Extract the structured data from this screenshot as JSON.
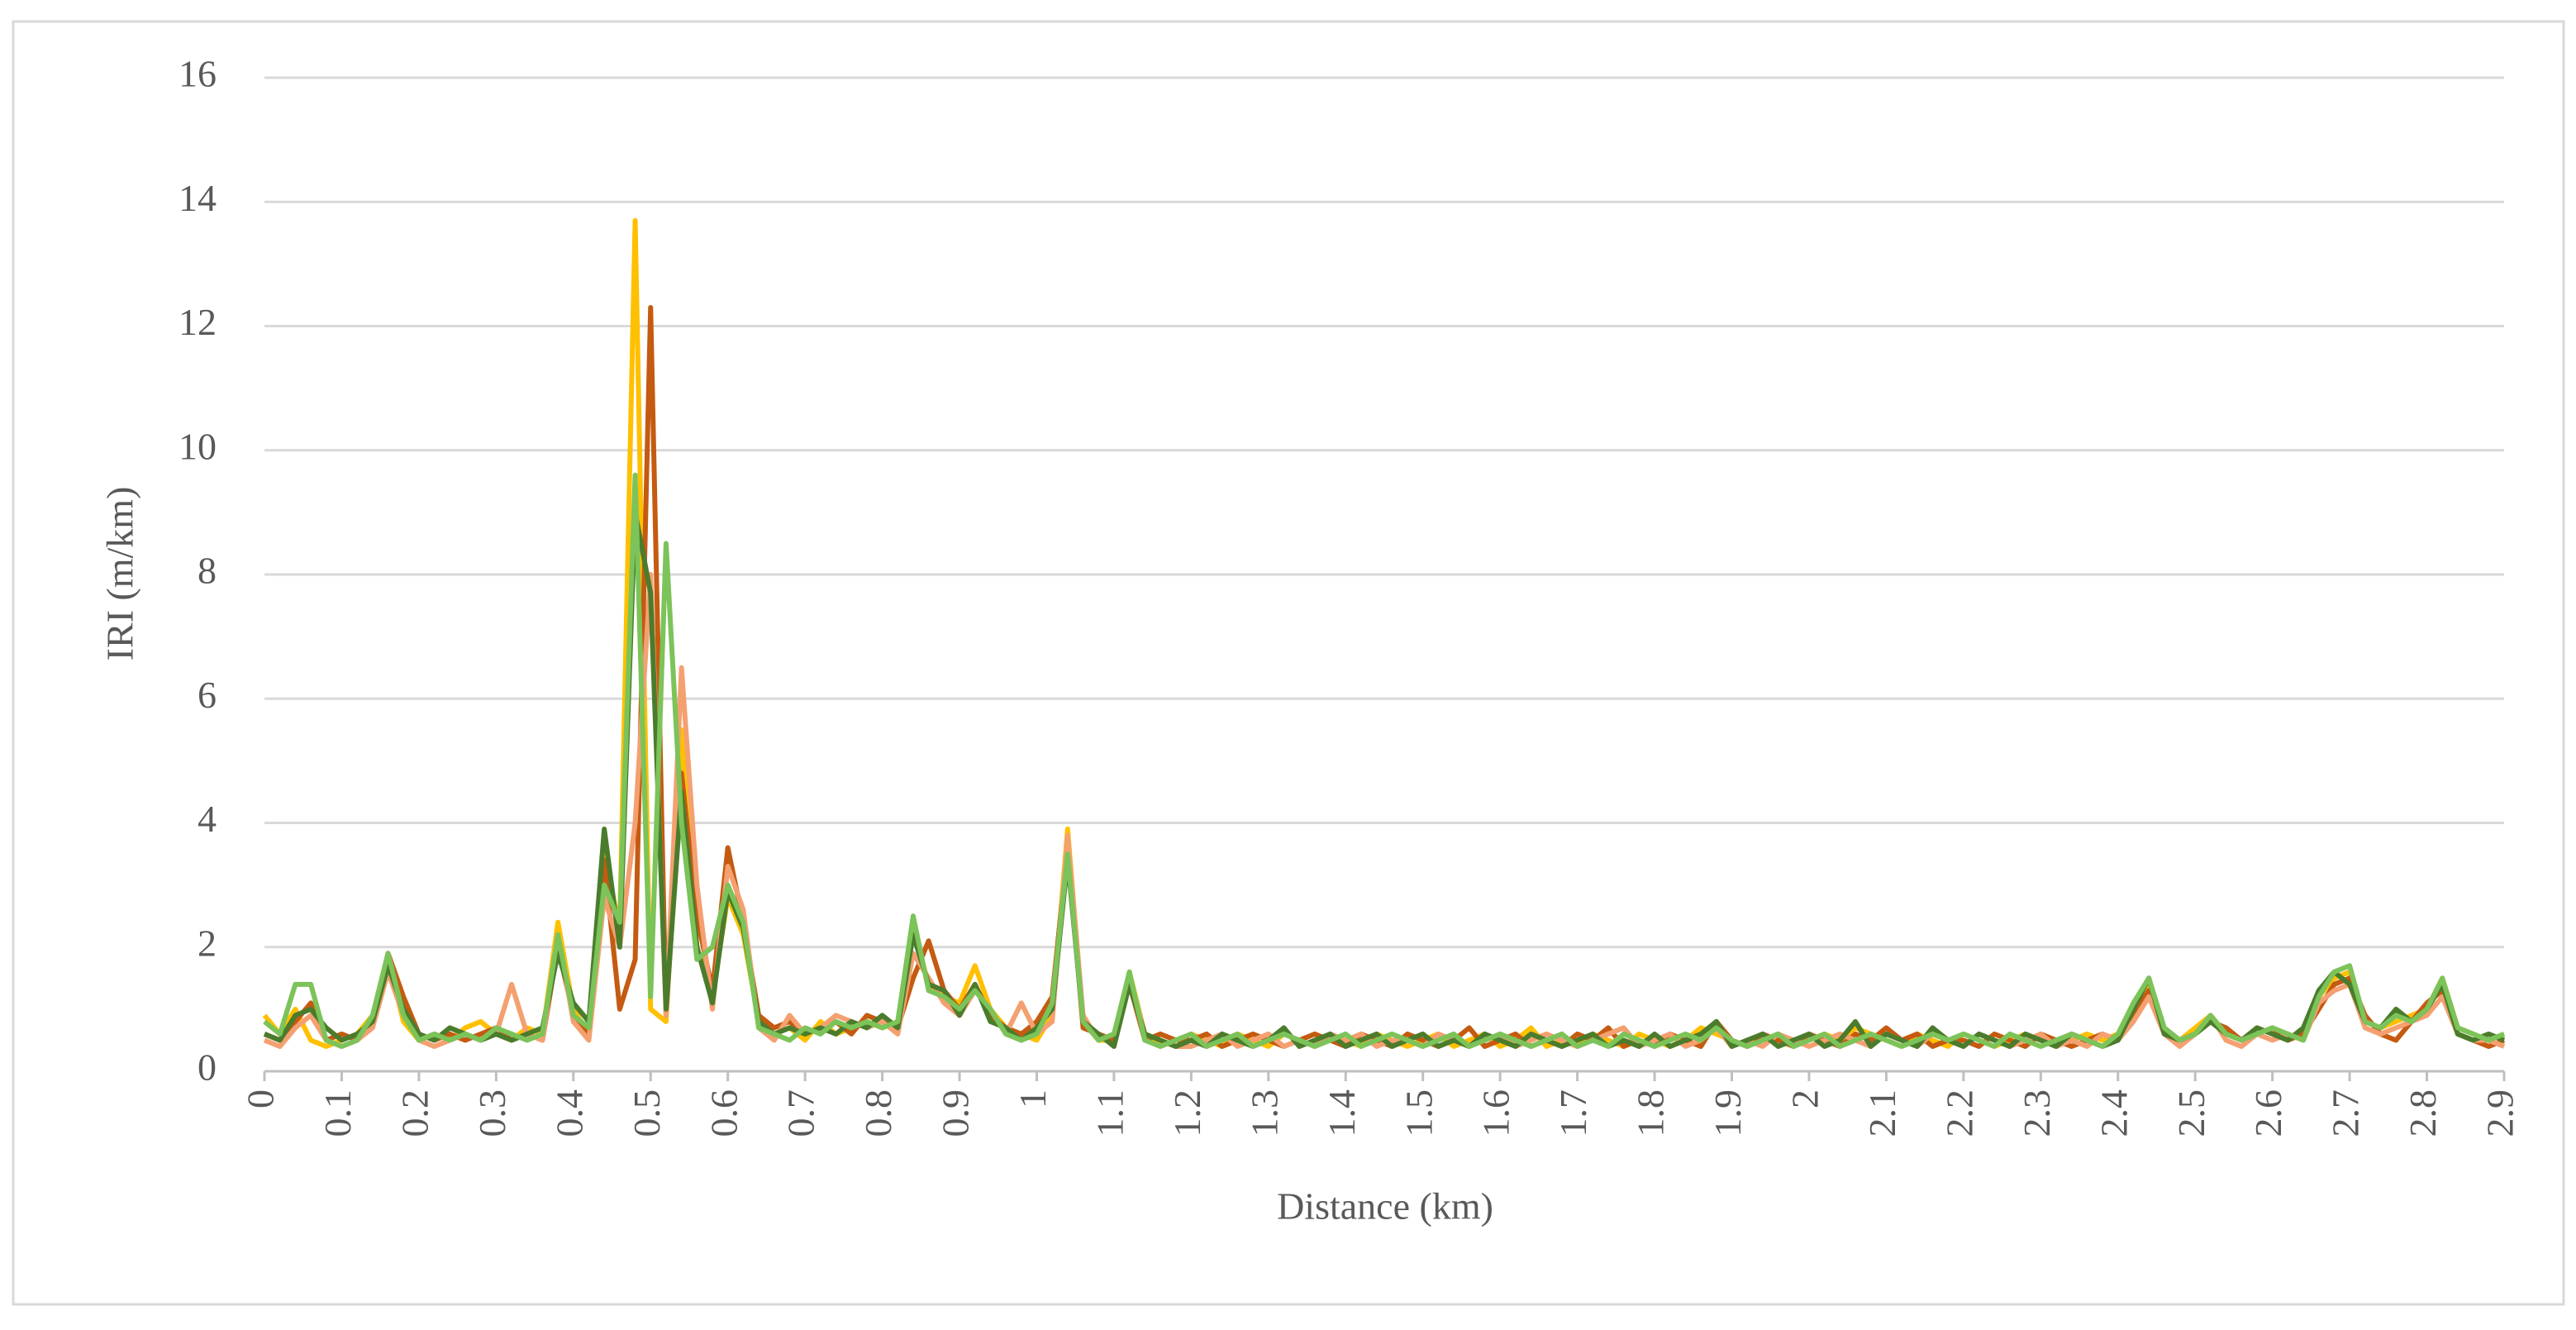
{
  "chart_data": {
    "type": "line",
    "x_label": "Distance (km)",
    "y_label": "IRI (m/km)",
    "xlim": [
      0,
      2.9
    ],
    "ylim": [
      0,
      16
    ],
    "xticks": [
      0,
      0.1,
      0.2,
      0.3,
      0.4,
      0.5,
      0.6,
      0.7,
      0.8,
      0.9,
      1,
      1.1,
      1.2,
      1.3,
      1.4,
      1.5,
      1.6,
      1.7,
      1.8,
      1.9,
      2,
      2.1,
      2.2,
      2.3,
      2.4,
      2.5,
      2.6,
      2.7,
      2.8,
      2.9
    ],
    "yticks": [
      0,
      2,
      4,
      6,
      8,
      10,
      12,
      14,
      16
    ],
    "grid": true,
    "x": [
      0,
      0.02,
      0.04,
      0.06,
      0.08,
      0.1,
      0.12,
      0.14,
      0.16,
      0.18,
      0.2,
      0.22,
      0.24,
      0.26,
      0.28,
      0.3,
      0.32,
      0.34,
      0.36,
      0.38,
      0.4,
      0.42,
      0.44,
      0.46,
      0.48,
      0.5,
      0.52,
      0.54,
      0.56,
      0.58,
      0.6,
      0.62,
      0.64,
      0.66,
      0.68,
      0.7,
      0.72,
      0.74,
      0.76,
      0.78,
      0.8,
      0.82,
      0.84,
      0.86,
      0.88,
      0.9,
      0.92,
      0.94,
      0.96,
      0.98,
      1,
      1.02,
      1.04,
      1.06,
      1.08,
      1.1,
      1.12,
      1.14,
      1.16,
      1.18,
      1.2,
      1.22,
      1.24,
      1.26,
      1.28,
      1.3,
      1.32,
      1.34,
      1.36,
      1.38,
      1.4,
      1.42,
      1.44,
      1.46,
      1.48,
      1.5,
      1.52,
      1.54,
      1.56,
      1.58,
      1.6,
      1.62,
      1.64,
      1.66,
      1.68,
      1.7,
      1.72,
      1.74,
      1.76,
      1.78,
      1.8,
      1.82,
      1.84,
      1.86,
      1.88,
      1.9,
      1.92,
      1.94,
      1.96,
      1.98,
      2,
      2.02,
      2.04,
      2.06,
      2.08,
      2.1,
      2.12,
      2.14,
      2.16,
      2.18,
      2.2,
      2.22,
      2.24,
      2.26,
      2.28,
      2.3,
      2.32,
      2.34,
      2.36,
      2.38,
      2.4,
      2.42,
      2.44,
      2.46,
      2.48,
      2.5,
      2.52,
      2.54,
      2.56,
      2.58,
      2.6,
      2.62,
      2.64,
      2.66,
      2.68,
      2.7,
      2.72,
      2.74,
      2.76,
      2.78,
      2.8,
      2.82,
      2.84,
      2.86,
      2.88,
      2.9
    ],
    "series": [
      {
        "color": "#ffc000",
        "values": [
          0.9,
          0.6,
          1.0,
          0.5,
          0.4,
          0.5,
          0.6,
          0.9,
          1.8,
          0.8,
          0.5,
          0.6,
          0.5,
          0.7,
          0.8,
          0.6,
          0.5,
          0.7,
          0.6,
          2.4,
          1.0,
          0.6,
          3.5,
          2.3,
          13.7,
          1.0,
          0.8,
          5.5,
          2.0,
          1.2,
          2.8,
          2.2,
          0.8,
          0.6,
          0.7,
          0.5,
          0.8,
          0.6,
          0.7,
          0.8,
          0.7,
          0.8,
          2.3,
          1.4,
          1.2,
          1.1,
          1.7,
          1.0,
          0.7,
          0.6,
          0.5,
          0.9,
          3.9,
          0.8,
          0.5,
          0.5,
          1.6,
          0.6,
          0.4,
          0.5,
          0.6,
          0.5,
          0.4,
          0.6,
          0.5,
          0.4,
          0.6,
          0.5,
          0.4,
          0.6,
          0.5,
          0.4,
          0.6,
          0.5,
          0.4,
          0.5,
          0.6,
          0.4,
          0.5,
          0.6,
          0.4,
          0.5,
          0.7,
          0.4,
          0.5,
          0.4,
          0.6,
          0.5,
          0.4,
          0.6,
          0.5,
          0.4,
          0.5,
          0.7,
          0.6,
          0.5,
          0.4,
          0.5,
          0.6,
          0.4,
          0.5,
          0.6,
          0.5,
          0.7,
          0.6,
          0.5,
          0.4,
          0.6,
          0.5,
          0.4,
          0.6,
          0.5,
          0.4,
          0.5,
          0.6,
          0.5,
          0.4,
          0.5,
          0.6,
          0.5,
          0.6,
          1.0,
          1.4,
          0.6,
          0.5,
          0.7,
          0.9,
          0.6,
          0.5,
          0.7,
          0.6,
          0.5,
          0.7,
          1.2,
          1.5,
          1.6,
          0.8,
          0.7,
          0.8,
          0.9,
          1.0,
          1.5,
          0.7,
          0.6,
          0.5,
          0.6
        ]
      },
      {
        "color": "#c55a11",
        "values": [
          0.6,
          0.5,
          0.8,
          1.1,
          0.5,
          0.6,
          0.5,
          0.8,
          1.9,
          1.2,
          0.6,
          0.5,
          0.6,
          0.5,
          0.6,
          0.7,
          0.5,
          0.6,
          0.5,
          2.0,
          0.9,
          0.6,
          3.4,
          1.0,
          1.8,
          12.3,
          0.9,
          4.8,
          2.5,
          1.3,
          3.6,
          2.4,
          0.9,
          0.7,
          0.8,
          0.6,
          0.7,
          0.8,
          0.6,
          0.9,
          0.8,
          0.7,
          1.5,
          2.1,
          1.3,
          1.0,
          1.4,
          0.9,
          0.7,
          0.6,
          0.8,
          1.2,
          3.6,
          0.7,
          0.6,
          0.5,
          1.4,
          0.5,
          0.6,
          0.5,
          0.5,
          0.6,
          0.4,
          0.5,
          0.6,
          0.5,
          0.4,
          0.5,
          0.6,
          0.5,
          0.4,
          0.6,
          0.5,
          0.4,
          0.6,
          0.5,
          0.4,
          0.5,
          0.7,
          0.4,
          0.5,
          0.6,
          0.4,
          0.5,
          0.4,
          0.6,
          0.5,
          0.7,
          0.4,
          0.5,
          0.4,
          0.6,
          0.5,
          0.4,
          0.8,
          0.5,
          0.4,
          0.6,
          0.5,
          0.4,
          0.6,
          0.5,
          0.4,
          0.6,
          0.5,
          0.7,
          0.5,
          0.6,
          0.4,
          0.5,
          0.5,
          0.4,
          0.6,
          0.5,
          0.4,
          0.6,
          0.5,
          0.4,
          0.5,
          0.6,
          0.5,
          0.9,
          1.3,
          0.7,
          0.5,
          0.6,
          0.8,
          0.7,
          0.5,
          0.6,
          0.7,
          0.5,
          0.6,
          1.0,
          1.4,
          1.5,
          0.9,
          0.6,
          0.5,
          0.8,
          1.1,
          1.3,
          0.6,
          0.5,
          0.4,
          0.5
        ]
      },
      {
        "color": "#f4a070",
        "values": [
          0.5,
          0.4,
          0.7,
          0.9,
          0.5,
          0.4,
          0.5,
          0.7,
          1.6,
          0.9,
          0.5,
          0.4,
          0.5,
          0.6,
          0.5,
          0.6,
          1.4,
          0.6,
          0.5,
          2.2,
          0.8,
          0.5,
          2.8,
          2.0,
          4.0,
          8.0,
          0.9,
          6.5,
          3.0,
          1.0,
          3.3,
          2.6,
          0.7,
          0.5,
          0.9,
          0.6,
          0.7,
          0.9,
          0.8,
          0.7,
          0.8,
          0.6,
          1.9,
          1.5,
          1.1,
          0.9,
          1.3,
          1.0,
          0.6,
          1.1,
          0.6,
          0.8,
          3.8,
          0.9,
          0.5,
          0.6,
          1.5,
          0.6,
          0.5,
          0.4,
          0.4,
          0.5,
          0.6,
          0.4,
          0.5,
          0.6,
          0.4,
          0.5,
          0.4,
          0.6,
          0.5,
          0.6,
          0.4,
          0.5,
          0.5,
          0.4,
          0.6,
          0.5,
          0.4,
          0.5,
          0.6,
          0.4,
          0.5,
          0.6,
          0.5,
          0.4,
          0.5,
          0.6,
          0.7,
          0.4,
          0.5,
          0.6,
          0.4,
          0.5,
          0.7,
          0.4,
          0.5,
          0.4,
          0.6,
          0.5,
          0.4,
          0.5,
          0.6,
          0.5,
          0.4,
          0.6,
          0.5,
          0.4,
          0.6,
          0.5,
          0.4,
          0.6,
          0.5,
          0.4,
          0.5,
          0.6,
          0.4,
          0.5,
          0.4,
          0.6,
          0.5,
          0.8,
          1.2,
          0.6,
          0.4,
          0.6,
          0.9,
          0.5,
          0.4,
          0.6,
          0.5,
          0.6,
          0.5,
          1.1,
          1.3,
          1.4,
          0.7,
          0.6,
          0.7,
          0.8,
          0.9,
          1.2,
          0.6,
          0.5,
          0.5,
          0.4
        ]
      },
      {
        "color": "#4a7c2c",
        "values": [
          0.6,
          0.5,
          0.9,
          1.0,
          0.7,
          0.5,
          0.6,
          0.8,
          1.7,
          1.0,
          0.6,
          0.5,
          0.7,
          0.6,
          0.5,
          0.6,
          0.5,
          0.6,
          0.7,
          1.9,
          1.1,
          0.8,
          3.9,
          2.0,
          9.0,
          7.7,
          1.0,
          4.5,
          2.0,
          1.1,
          2.9,
          2.3,
          0.8,
          0.6,
          0.7,
          0.6,
          0.7,
          0.6,
          0.8,
          0.7,
          0.9,
          0.7,
          2.2,
          1.4,
          1.3,
          0.9,
          1.4,
          0.8,
          0.7,
          0.5,
          0.7,
          1.0,
          3.4,
          0.8,
          0.6,
          0.4,
          1.4,
          0.6,
          0.5,
          0.4,
          0.5,
          0.4,
          0.6,
          0.5,
          0.4,
          0.5,
          0.7,
          0.4,
          0.5,
          0.6,
          0.4,
          0.5,
          0.6,
          0.4,
          0.5,
          0.6,
          0.4,
          0.5,
          0.4,
          0.6,
          0.5,
          0.4,
          0.6,
          0.5,
          0.4,
          0.5,
          0.6,
          0.4,
          0.5,
          0.4,
          0.6,
          0.4,
          0.5,
          0.6,
          0.8,
          0.4,
          0.5,
          0.6,
          0.4,
          0.5,
          0.6,
          0.4,
          0.5,
          0.8,
          0.4,
          0.6,
          0.5,
          0.4,
          0.7,
          0.5,
          0.4,
          0.6,
          0.5,
          0.4,
          0.6,
          0.5,
          0.4,
          0.6,
          0.5,
          0.4,
          0.5,
          1.0,
          1.5,
          0.6,
          0.5,
          0.6,
          0.8,
          0.6,
          0.5,
          0.7,
          0.6,
          0.5,
          0.7,
          1.3,
          1.6,
          1.4,
          0.8,
          0.7,
          1.0,
          0.8,
          1.0,
          1.4,
          0.6,
          0.5,
          0.6,
          0.5
        ]
      },
      {
        "color": "#7cc35a",
        "values": [
          0.8,
          0.6,
          1.4,
          1.4,
          0.5,
          0.4,
          0.5,
          0.9,
          1.9,
          0.9,
          0.5,
          0.6,
          0.5,
          0.6,
          0.5,
          0.7,
          0.6,
          0.5,
          0.6,
          2.2,
          0.9,
          0.7,
          3.0,
          2.4,
          9.6,
          1.2,
          8.5,
          4.0,
          1.8,
          2.0,
          3.0,
          2.4,
          0.7,
          0.6,
          0.5,
          0.7,
          0.6,
          0.8,
          0.7,
          0.8,
          0.7,
          0.8,
          2.5,
          1.3,
          1.2,
          1.0,
          1.3,
          1.0,
          0.6,
          0.5,
          0.6,
          1.1,
          3.5,
          0.8,
          0.5,
          0.6,
          1.6,
          0.5,
          0.4,
          0.5,
          0.6,
          0.4,
          0.5,
          0.6,
          0.4,
          0.5,
          0.6,
          0.5,
          0.4,
          0.5,
          0.6,
          0.4,
          0.5,
          0.6,
          0.5,
          0.4,
          0.5,
          0.6,
          0.4,
          0.5,
          0.6,
          0.5,
          0.4,
          0.5,
          0.6,
          0.4,
          0.5,
          0.4,
          0.6,
          0.5,
          0.4,
          0.5,
          0.6,
          0.5,
          0.7,
          0.5,
          0.4,
          0.5,
          0.6,
          0.4,
          0.5,
          0.6,
          0.4,
          0.5,
          0.6,
          0.5,
          0.4,
          0.5,
          0.6,
          0.5,
          0.6,
          0.5,
          0.4,
          0.6,
          0.5,
          0.4,
          0.5,
          0.6,
          0.5,
          0.4,
          0.6,
          1.1,
          1.5,
          0.7,
          0.5,
          0.6,
          0.9,
          0.6,
          0.5,
          0.6,
          0.7,
          0.6,
          0.5,
          1.2,
          1.6,
          1.7,
          0.8,
          0.7,
          0.9,
          0.8,
          1.0,
          1.5,
          0.7,
          0.6,
          0.5,
          0.6
        ]
      }
    ]
  }
}
